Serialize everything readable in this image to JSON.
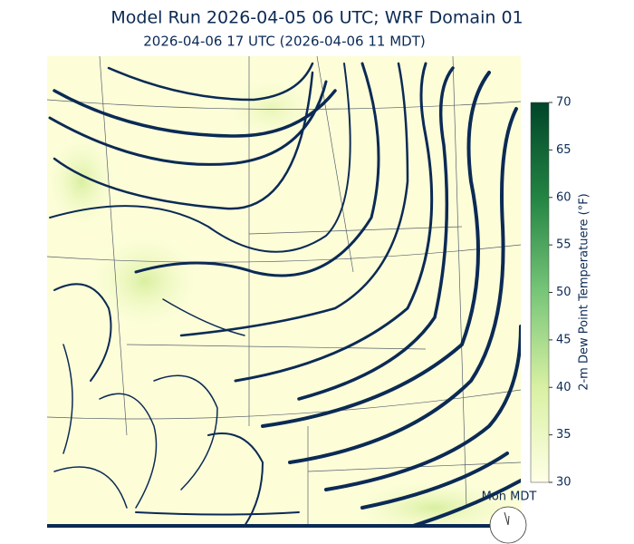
{
  "header": {
    "title": "Model Run 2026-04-05 06 UTC; WRF Domain 01",
    "subtitle": "2026-04-06 17 UTC  (2026-04-06 11 MDT)"
  },
  "colorbar": {
    "label": "2-m Dew Point Temperatuere (°F)",
    "lim": [
      30,
      70
    ],
    "ticks": [
      30,
      35,
      40,
      45,
      50,
      55,
      60,
      65,
      70
    ]
  },
  "clock": {
    "label": "Mon MDT"
  }
}
